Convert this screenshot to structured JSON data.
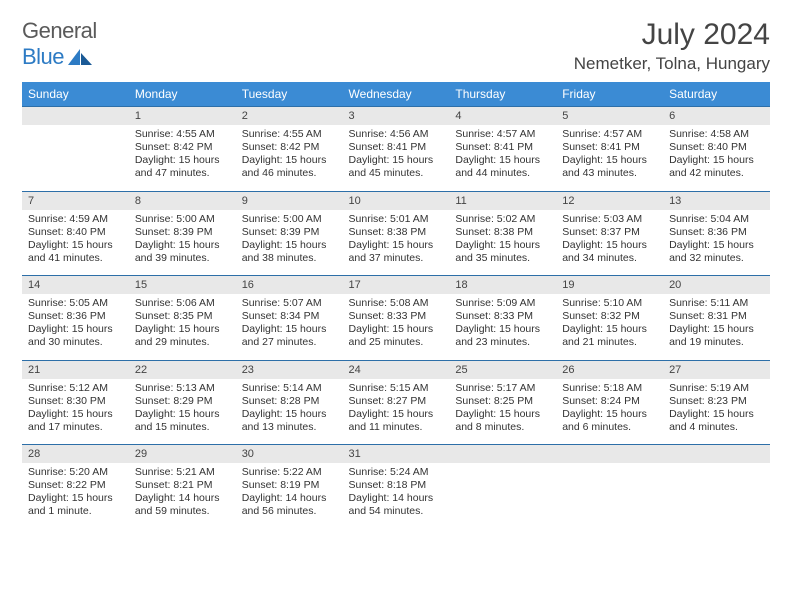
{
  "brand": {
    "part1": "General",
    "part2": "Blue"
  },
  "title": "July 2024",
  "location": "Nemetker, Tolna, Hungary",
  "colors": {
    "header_bg": "#3b8bd4",
    "header_text": "#ffffff",
    "daynum_bg": "#e8e8e8",
    "row_border": "#2d6fa8",
    "logo_gray": "#5a5a5a",
    "logo_blue": "#2d7bc4",
    "text": "#333333",
    "background": "#ffffff"
  },
  "daysOfWeek": [
    "Sunday",
    "Monday",
    "Tuesday",
    "Wednesday",
    "Thursday",
    "Friday",
    "Saturday"
  ],
  "weeks": [
    [
      {
        "empty": true
      },
      {
        "n": "1",
        "sr": "4:55 AM",
        "ss": "8:42 PM",
        "dl": "15 hours and 47 minutes."
      },
      {
        "n": "2",
        "sr": "4:55 AM",
        "ss": "8:42 PM",
        "dl": "15 hours and 46 minutes."
      },
      {
        "n": "3",
        "sr": "4:56 AM",
        "ss": "8:41 PM",
        "dl": "15 hours and 45 minutes."
      },
      {
        "n": "4",
        "sr": "4:57 AM",
        "ss": "8:41 PM",
        "dl": "15 hours and 44 minutes."
      },
      {
        "n": "5",
        "sr": "4:57 AM",
        "ss": "8:41 PM",
        "dl": "15 hours and 43 minutes."
      },
      {
        "n": "6",
        "sr": "4:58 AM",
        "ss": "8:40 PM",
        "dl": "15 hours and 42 minutes."
      }
    ],
    [
      {
        "n": "7",
        "sr": "4:59 AM",
        "ss": "8:40 PM",
        "dl": "15 hours and 41 minutes."
      },
      {
        "n": "8",
        "sr": "5:00 AM",
        "ss": "8:39 PM",
        "dl": "15 hours and 39 minutes."
      },
      {
        "n": "9",
        "sr": "5:00 AM",
        "ss": "8:39 PM",
        "dl": "15 hours and 38 minutes."
      },
      {
        "n": "10",
        "sr": "5:01 AM",
        "ss": "8:38 PM",
        "dl": "15 hours and 37 minutes."
      },
      {
        "n": "11",
        "sr": "5:02 AM",
        "ss": "8:38 PM",
        "dl": "15 hours and 35 minutes."
      },
      {
        "n": "12",
        "sr": "5:03 AM",
        "ss": "8:37 PM",
        "dl": "15 hours and 34 minutes."
      },
      {
        "n": "13",
        "sr": "5:04 AM",
        "ss": "8:36 PM",
        "dl": "15 hours and 32 minutes."
      }
    ],
    [
      {
        "n": "14",
        "sr": "5:05 AM",
        "ss": "8:36 PM",
        "dl": "15 hours and 30 minutes."
      },
      {
        "n": "15",
        "sr": "5:06 AM",
        "ss": "8:35 PM",
        "dl": "15 hours and 29 minutes."
      },
      {
        "n": "16",
        "sr": "5:07 AM",
        "ss": "8:34 PM",
        "dl": "15 hours and 27 minutes."
      },
      {
        "n": "17",
        "sr": "5:08 AM",
        "ss": "8:33 PM",
        "dl": "15 hours and 25 minutes."
      },
      {
        "n": "18",
        "sr": "5:09 AM",
        "ss": "8:33 PM",
        "dl": "15 hours and 23 minutes."
      },
      {
        "n": "19",
        "sr": "5:10 AM",
        "ss": "8:32 PM",
        "dl": "15 hours and 21 minutes."
      },
      {
        "n": "20",
        "sr": "5:11 AM",
        "ss": "8:31 PM",
        "dl": "15 hours and 19 minutes."
      }
    ],
    [
      {
        "n": "21",
        "sr": "5:12 AM",
        "ss": "8:30 PM",
        "dl": "15 hours and 17 minutes."
      },
      {
        "n": "22",
        "sr": "5:13 AM",
        "ss": "8:29 PM",
        "dl": "15 hours and 15 minutes."
      },
      {
        "n": "23",
        "sr": "5:14 AM",
        "ss": "8:28 PM",
        "dl": "15 hours and 13 minutes."
      },
      {
        "n": "24",
        "sr": "5:15 AM",
        "ss": "8:27 PM",
        "dl": "15 hours and 11 minutes."
      },
      {
        "n": "25",
        "sr": "5:17 AM",
        "ss": "8:25 PM",
        "dl": "15 hours and 8 minutes."
      },
      {
        "n": "26",
        "sr": "5:18 AM",
        "ss": "8:24 PM",
        "dl": "15 hours and 6 minutes."
      },
      {
        "n": "27",
        "sr": "5:19 AM",
        "ss": "8:23 PM",
        "dl": "15 hours and 4 minutes."
      }
    ],
    [
      {
        "n": "28",
        "sr": "5:20 AM",
        "ss": "8:22 PM",
        "dl": "15 hours and 1 minute."
      },
      {
        "n": "29",
        "sr": "5:21 AM",
        "ss": "8:21 PM",
        "dl": "14 hours and 59 minutes."
      },
      {
        "n": "30",
        "sr": "5:22 AM",
        "ss": "8:19 PM",
        "dl": "14 hours and 56 minutes."
      },
      {
        "n": "31",
        "sr": "5:24 AM",
        "ss": "8:18 PM",
        "dl": "14 hours and 54 minutes."
      },
      {
        "empty": true
      },
      {
        "empty": true
      },
      {
        "empty": true
      }
    ]
  ],
  "labels": {
    "sunrise": "Sunrise:",
    "sunset": "Sunset:",
    "daylight": "Daylight:"
  }
}
